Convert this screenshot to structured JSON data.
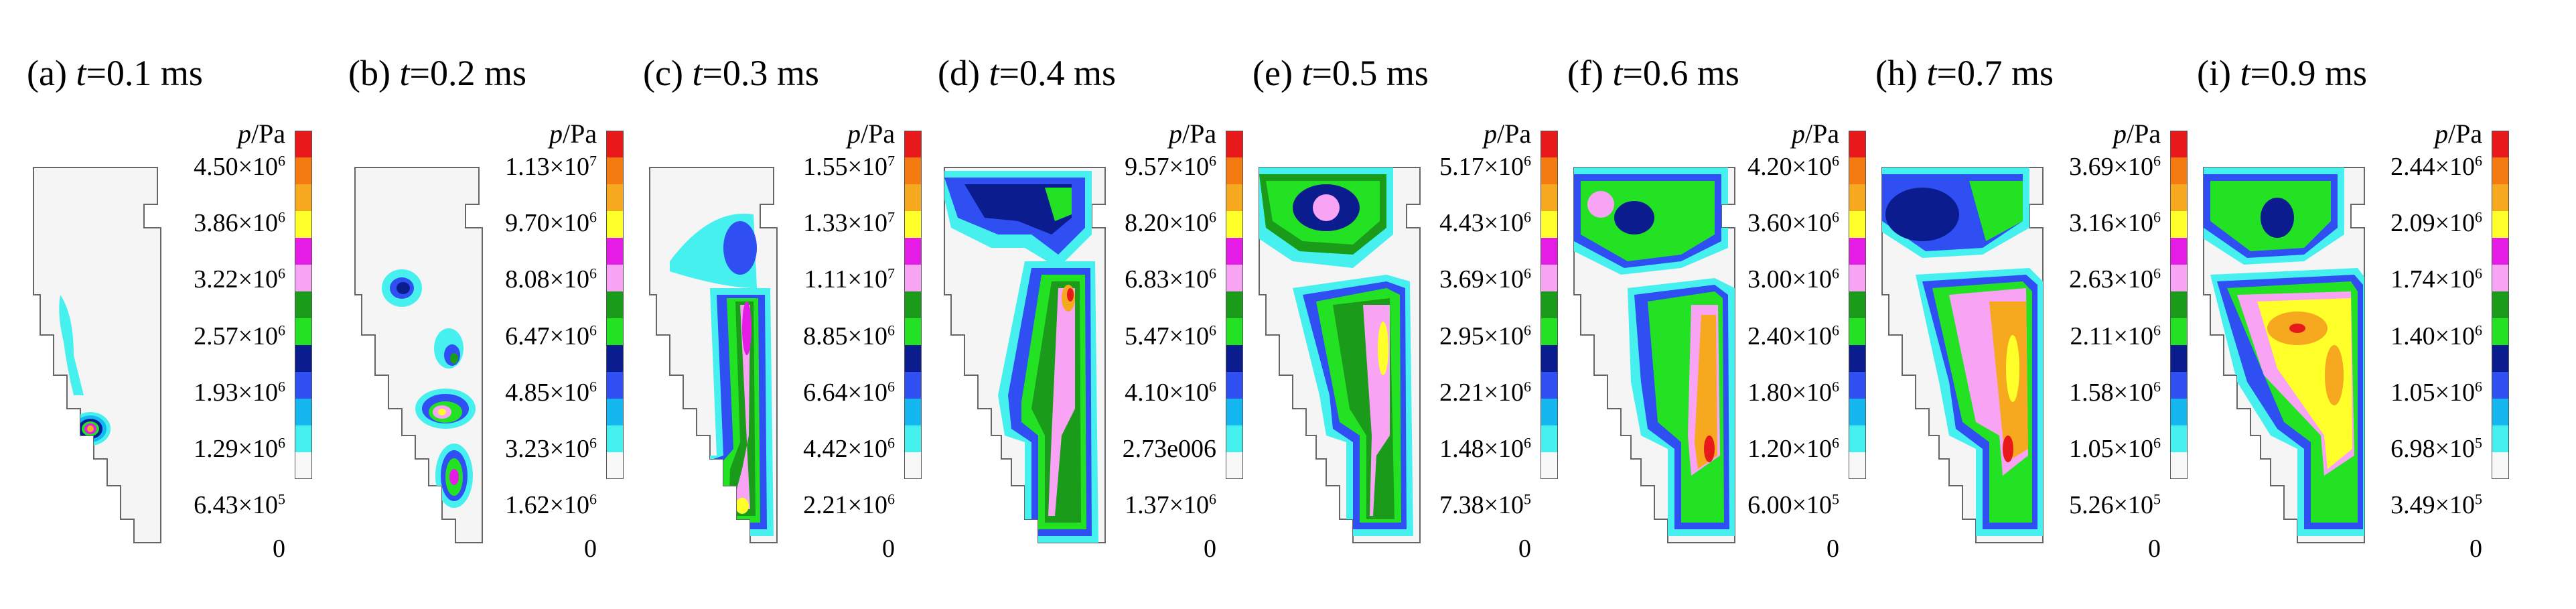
{
  "legend_colors": [
    "#e8191b",
    "#f47a12",
    "#f6a81e",
    "#ffff2a",
    "#e41ce6",
    "#f9a3f4",
    "#1a9b1a",
    "#23e223",
    "#0b1c8e",
    "#2f4ff2",
    "#15b7f1",
    "#46f0ef",
    "#f8f8f8"
  ],
  "contour_colors": {
    "background": "#f5f5f5",
    "cyan": "#46f0ef",
    "lightblue": "#15b7f1",
    "blue": "#2f4ff2",
    "darkblue": "#0b1c8e",
    "green": "#23e223",
    "darkgreen": "#1a9b1a",
    "pink": "#f9a3f4",
    "magenta": "#e41ce6",
    "yellow": "#ffff2a",
    "orange": "#f6a81e",
    "red": "#e8191b"
  },
  "panels": [
    {
      "label": "(a) ",
      "var": "t",
      "value": "=0.1 ms",
      "unit_var": "p",
      "unit": "/Pa",
      "ticks": [
        "4.50×10^6",
        "3.86×10^6",
        "3.22×10^6",
        "2.57×10^6",
        "1.93×10^6",
        "1.29×10^6",
        "6.43×10^5",
        "0"
      ]
    },
    {
      "label": "(b) ",
      "var": "t",
      "value": "=0.2 ms",
      "unit_var": "p",
      "unit": "/Pa",
      "ticks": [
        "1.13×10^7",
        "9.70×10^6",
        "8.08×10^6",
        "6.47×10^6",
        "4.85×10^6",
        "3.23×10^6",
        "1.62×10^6",
        "0"
      ]
    },
    {
      "label": "(c) ",
      "var": "t",
      "value": "=0.3 ms",
      "unit_var": "p",
      "unit": "/Pa",
      "ticks": [
        "1.55×10^7",
        "1.33×10^7",
        "1.11×10^7",
        "8.85×10^6",
        "6.64×10^6",
        "4.42×10^6",
        "2.21×10^6",
        "0"
      ]
    },
    {
      "label": "(d) ",
      "var": "t",
      "value": "=0.4 ms",
      "unit_var": "p",
      "unit": "/Pa",
      "ticks": [
        "9.57×10^6",
        "8.20×10^6",
        "6.83×10^6",
        "5.47×10^6",
        "4.10×10^6",
        "2.73e006",
        "1.37×10^6",
        "0"
      ]
    },
    {
      "label": "(e) ",
      "var": "t",
      "value": "=0.5 ms",
      "unit_var": "p",
      "unit": "/Pa",
      "ticks": [
        "5.17×10^6",
        "4.43×10^6",
        "3.69×10^6",
        "2.95×10^6",
        "2.21×10^6",
        "1.48×10^6",
        "7.38×10^5",
        "0"
      ]
    },
    {
      "label": "(f) ",
      "var": "t",
      "value": "=0.6 ms",
      "unit_var": "p",
      "unit": "/Pa",
      "ticks": [
        "4.20×10^6",
        "3.60×10^6",
        "3.00×10^6",
        "2.40×10^6",
        "1.80×10^6",
        "1.20×10^6",
        "6.00×10^5",
        "0"
      ]
    },
    {
      "label": "(h) ",
      "var": "t",
      "value": "=0.7 ms",
      "unit_var": "p",
      "unit": "/Pa",
      "ticks": [
        "3.69×10^6",
        "3.16×10^6",
        "2.63×10^6",
        "2.11×10^6",
        "1.58×10^6",
        "1.05×10^6",
        "5.26×10^5",
        "0"
      ]
    },
    {
      "label": "(i) ",
      "var": "t",
      "value": "=0.9 ms",
      "unit_var": "p",
      "unit": "/Pa",
      "ticks": [
        "2.44×10^6",
        "2.09×10^6",
        "1.74×10^6",
        "1.40×10^6",
        "1.05×10^6",
        "6.98×10^5",
        "3.49×10^5",
        "0"
      ]
    }
  ]
}
